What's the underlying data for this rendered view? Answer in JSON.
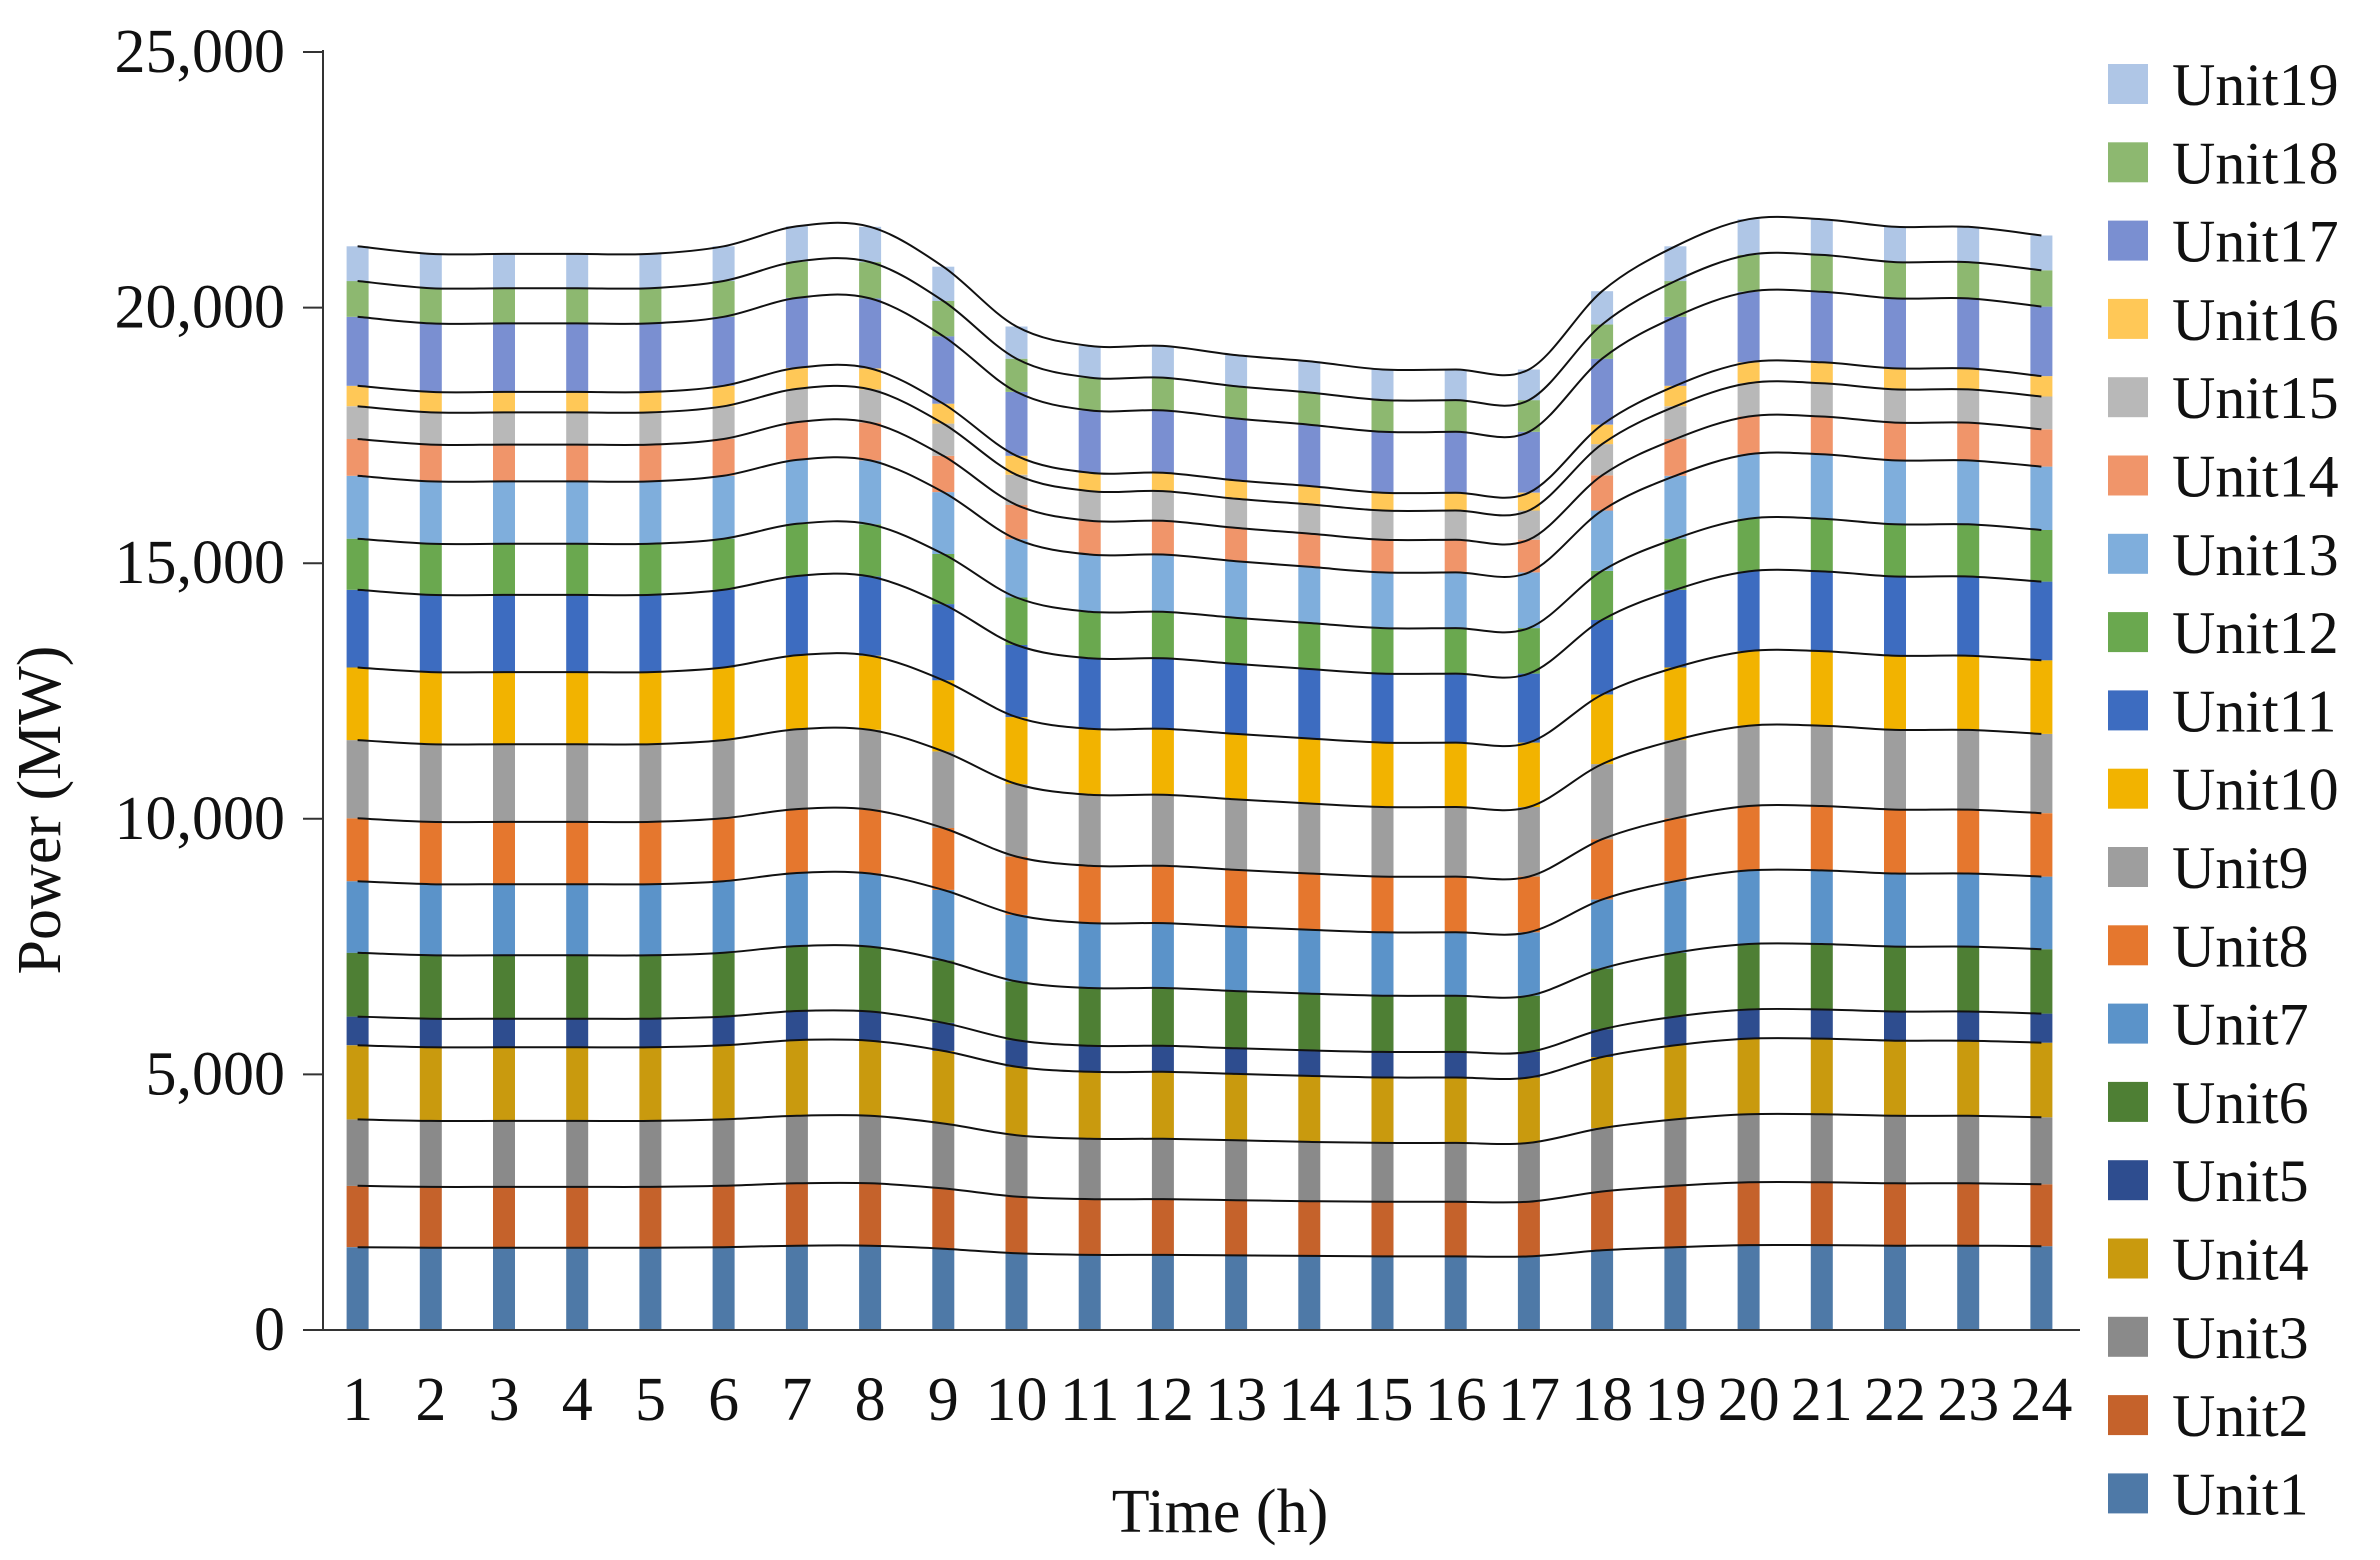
{
  "chart_data": {
    "type": "bar",
    "stacked": true,
    "connector_lines": true,
    "title": "",
    "xlabel": "Time (h)",
    "ylabel": "Power (MW)",
    "ylim": [
      0,
      25000
    ],
    "y_ticks": [
      "0",
      "5,000",
      "10,000",
      "15,000",
      "20,000",
      "25,000"
    ],
    "y_tick_values": [
      0,
      5000,
      10000,
      15000,
      20000,
      25000
    ],
    "categories": [
      "1",
      "2",
      "3",
      "4",
      "5",
      "6",
      "7",
      "8",
      "9",
      "10",
      "11",
      "12",
      "13",
      "14",
      "15",
      "16",
      "17",
      "18",
      "19",
      "20",
      "21",
      "22",
      "23",
      "24"
    ],
    "grid": false,
    "legend_position": "right",
    "series": [
      {
        "name": "Unit1",
        "color": "#4E79A7",
        "values": [
          1620,
          1610,
          1610,
          1610,
          1610,
          1620,
          1650,
          1650,
          1590,
          1500,
          1470,
          1470,
          1460,
          1450,
          1440,
          1440,
          1440,
          1560,
          1620,
          1660,
          1660,
          1650,
          1650,
          1640
        ]
      },
      {
        "name": "Unit2",
        "color": "#C5622B",
        "values": [
          1200,
          1190,
          1190,
          1190,
          1190,
          1200,
          1220,
          1220,
          1180,
          1110,
          1090,
          1090,
          1080,
          1070,
          1070,
          1070,
          1070,
          1150,
          1200,
          1230,
          1230,
          1220,
          1220,
          1210
        ]
      },
      {
        "name": "Unit3",
        "color": "#8A8A8A",
        "values": [
          1300,
          1290,
          1290,
          1290,
          1290,
          1300,
          1320,
          1320,
          1270,
          1200,
          1180,
          1180,
          1170,
          1160,
          1150,
          1150,
          1150,
          1240,
          1300,
          1330,
          1330,
          1320,
          1320,
          1310
        ]
      },
      {
        "name": "Unit4",
        "color": "#C99A0E",
        "values": [
          1450,
          1440,
          1440,
          1440,
          1440,
          1450,
          1480,
          1470,
          1420,
          1340,
          1310,
          1310,
          1300,
          1290,
          1280,
          1280,
          1280,
          1390,
          1450,
          1480,
          1480,
          1470,
          1470,
          1460
        ]
      },
      {
        "name": "Unit5",
        "color": "#2E4D8F",
        "values": [
          560,
          560,
          560,
          560,
          560,
          560,
          570,
          570,
          550,
          520,
          510,
          510,
          500,
          500,
          500,
          500,
          500,
          540,
          560,
          570,
          570,
          570,
          570,
          570
        ]
      },
      {
        "name": "Unit6",
        "color": "#4E7F34",
        "values": [
          1250,
          1240,
          1240,
          1240,
          1240,
          1250,
          1270,
          1270,
          1220,
          1150,
          1130,
          1130,
          1120,
          1110,
          1100,
          1100,
          1100,
          1190,
          1250,
          1280,
          1280,
          1270,
          1270,
          1260
        ]
      },
      {
        "name": "Unit7",
        "color": "#5B93C9",
        "values": [
          1400,
          1390,
          1390,
          1390,
          1390,
          1400,
          1430,
          1430,
          1380,
          1300,
          1270,
          1270,
          1260,
          1250,
          1240,
          1240,
          1240,
          1350,
          1400,
          1440,
          1440,
          1430,
          1430,
          1420
        ]
      },
      {
        "name": "Unit8",
        "color": "#E5772E",
        "values": [
          1230,
          1220,
          1220,
          1220,
          1220,
          1230,
          1250,
          1250,
          1210,
          1140,
          1120,
          1120,
          1110,
          1100,
          1090,
          1090,
          1090,
          1180,
          1230,
          1260,
          1260,
          1250,
          1250,
          1240
        ]
      },
      {
        "name": "Unit9",
        "color": "#9E9E9E",
        "values": [
          1530,
          1520,
          1520,
          1520,
          1520,
          1530,
          1560,
          1560,
          1500,
          1420,
          1390,
          1390,
          1380,
          1370,
          1360,
          1360,
          1360,
          1470,
          1530,
          1570,
          1570,
          1560,
          1560,
          1550
        ]
      },
      {
        "name": "Unit10",
        "color": "#F2B300",
        "values": [
          1420,
          1410,
          1410,
          1410,
          1410,
          1420,
          1450,
          1450,
          1390,
          1310,
          1290,
          1290,
          1280,
          1270,
          1260,
          1260,
          1260,
          1360,
          1420,
          1460,
          1460,
          1450,
          1450,
          1440
        ]
      },
      {
        "name": "Unit11",
        "color": "#3D6CC0",
        "values": [
          1520,
          1510,
          1510,
          1510,
          1510,
          1520,
          1550,
          1550,
          1490,
          1410,
          1380,
          1380,
          1370,
          1360,
          1350,
          1350,
          1350,
          1460,
          1520,
          1560,
          1560,
          1550,
          1550,
          1540
        ]
      },
      {
        "name": "Unit12",
        "color": "#6AA84F",
        "values": [
          1000,
          1000,
          1000,
          1000,
          1000,
          1000,
          1020,
          1020,
          980,
          930,
          910,
          910,
          900,
          900,
          890,
          890,
          890,
          960,
          1000,
          1030,
          1030,
          1020,
          1020,
          1010
        ]
      },
      {
        "name": "Unit13",
        "color": "#7FAEDC",
        "values": [
          1230,
          1220,
          1220,
          1220,
          1220,
          1230,
          1250,
          1250,
          1210,
          1140,
          1120,
          1120,
          1110,
          1100,
          1090,
          1090,
          1090,
          1180,
          1230,
          1260,
          1260,
          1250,
          1250,
          1240
        ]
      },
      {
        "name": "Unit14",
        "color": "#F0956A",
        "values": [
          720,
          720,
          720,
          720,
          720,
          720,
          740,
          740,
          710,
          670,
          660,
          660,
          650,
          650,
          640,
          640,
          640,
          690,
          720,
          740,
          740,
          740,
          740,
          730
        ]
      },
      {
        "name": "Unit15",
        "color": "#B8B8B8",
        "values": [
          640,
          630,
          630,
          630,
          630,
          640,
          650,
          650,
          630,
          590,
          580,
          580,
          570,
          570,
          570,
          570,
          570,
          610,
          640,
          650,
          650,
          650,
          650,
          640
        ]
      },
      {
        "name": "Unit16",
        "color": "#FFC857",
        "values": [
          400,
          400,
          400,
          400,
          400,
          400,
          410,
          410,
          390,
          370,
          360,
          360,
          360,
          360,
          350,
          350,
          350,
          380,
          400,
          410,
          410,
          410,
          410,
          400
        ]
      },
      {
        "name": "Unit17",
        "color": "#7A8FD1",
        "values": [
          1350,
          1340,
          1340,
          1340,
          1340,
          1350,
          1370,
          1370,
          1320,
          1250,
          1220,
          1220,
          1210,
          1200,
          1190,
          1190,
          1190,
          1290,
          1350,
          1380,
          1380,
          1370,
          1370,
          1360
        ]
      },
      {
        "name": "Unit18",
        "color": "#8DB870",
        "values": [
          700,
          690,
          690,
          690,
          690,
          700,
          710,
          710,
          690,
          650,
          640,
          640,
          630,
          630,
          620,
          620,
          620,
          670,
          700,
          720,
          720,
          710,
          710,
          710
        ]
      },
      {
        "name": "Unit19",
        "color": "#AFC6E6",
        "values": [
          680,
          670,
          670,
          670,
          670,
          680,
          690,
          690,
          670,
          630,
          620,
          620,
          610,
          610,
          600,
          600,
          600,
          650,
          680,
          700,
          700,
          690,
          690,
          680
        ]
      }
    ]
  }
}
